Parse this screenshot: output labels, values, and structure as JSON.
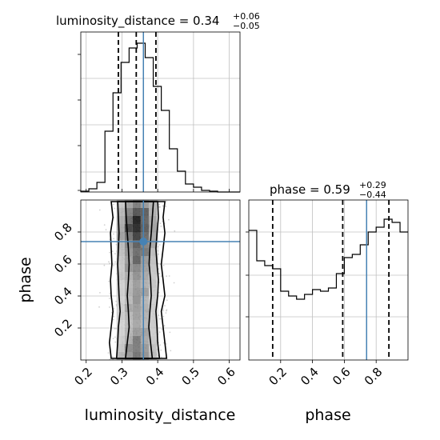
{
  "chart_data": {
    "type": "corner",
    "parameters": [
      "luminosity_distance",
      "phase"
    ],
    "truths": {
      "luminosity_distance": 0.36,
      "phase": 0.74
    },
    "colors": {
      "truth": "#4682b4",
      "hist": "#000000",
      "grid": "#c0c0c0",
      "points": "#9a9a9a"
    },
    "grid": true,
    "titles": {
      "luminosity_distance": {
        "prefix": "luminosity_distance = 0.34",
        "plus": "+0.06",
        "minus": "−0.05"
      },
      "phase": {
        "prefix": "phase = 0.59",
        "plus": "+0.29",
        "minus": "−0.44"
      }
    },
    "luminosity_distance": {
      "axis_label": "luminosity_distance",
      "xlim": [
        0.185,
        0.63
      ],
      "ticks": [
        0.2,
        0.3,
        0.4,
        0.5,
        0.6
      ],
      "tick_labels": [
        "0.2",
        "0.3",
        "0.4",
        "0.5",
        "0.6"
      ],
      "quantiles": [
        0.29,
        0.34,
        0.395
      ],
      "hist": {
        "edges": [
          0.185,
          0.2075,
          0.23,
          0.2525,
          0.275,
          0.2975,
          0.32,
          0.3425,
          0.365,
          0.3875,
          0.41,
          0.4325,
          0.455,
          0.4775,
          0.5,
          0.5225,
          0.545,
          0.5675,
          0.59,
          0.6125,
          0.63
        ],
        "counts": [
          0.5,
          2,
          6,
          38,
          62,
          81,
          90,
          93,
          84,
          66,
          51,
          27,
          13,
          5,
          3,
          1,
          0.5,
          0,
          0,
          0
        ]
      },
      "hist_ylim": [
        0,
        100
      ]
    },
    "phase": {
      "axis_label": "phase",
      "xlim": [
        0.0,
        1.0
      ],
      "ticks": [
        0.2,
        0.4,
        0.6,
        0.8
      ],
      "tick_labels": [
        "0.2",
        "0.4",
        "0.6",
        "0.8"
      ],
      "quantiles": [
        0.15,
        0.59,
        0.88
      ],
      "hist": {
        "edges": [
          0.0,
          0.05,
          0.1,
          0.15,
          0.2,
          0.25,
          0.3,
          0.35,
          0.4,
          0.45,
          0.5,
          0.55,
          0.6,
          0.65,
          0.7,
          0.75,
          0.8,
          0.85,
          0.9,
          0.95,
          1.0
        ],
        "counts": [
          81,
          62,
          59,
          57,
          43,
          40,
          38,
          41,
          44,
          43,
          45,
          54,
          64,
          66,
          72,
          80,
          83,
          88,
          86,
          80
        ]
      },
      "hist_ylim": [
        0,
        100
      ]
    },
    "joint": {
      "ticks_y": [
        0.2,
        0.4,
        0.6,
        0.8
      ],
      "tick_labels_y": [
        "0.2",
        "0.4",
        "0.6",
        "0.8"
      ],
      "ylim": [
        0.0,
        1.0
      ]
    }
  }
}
